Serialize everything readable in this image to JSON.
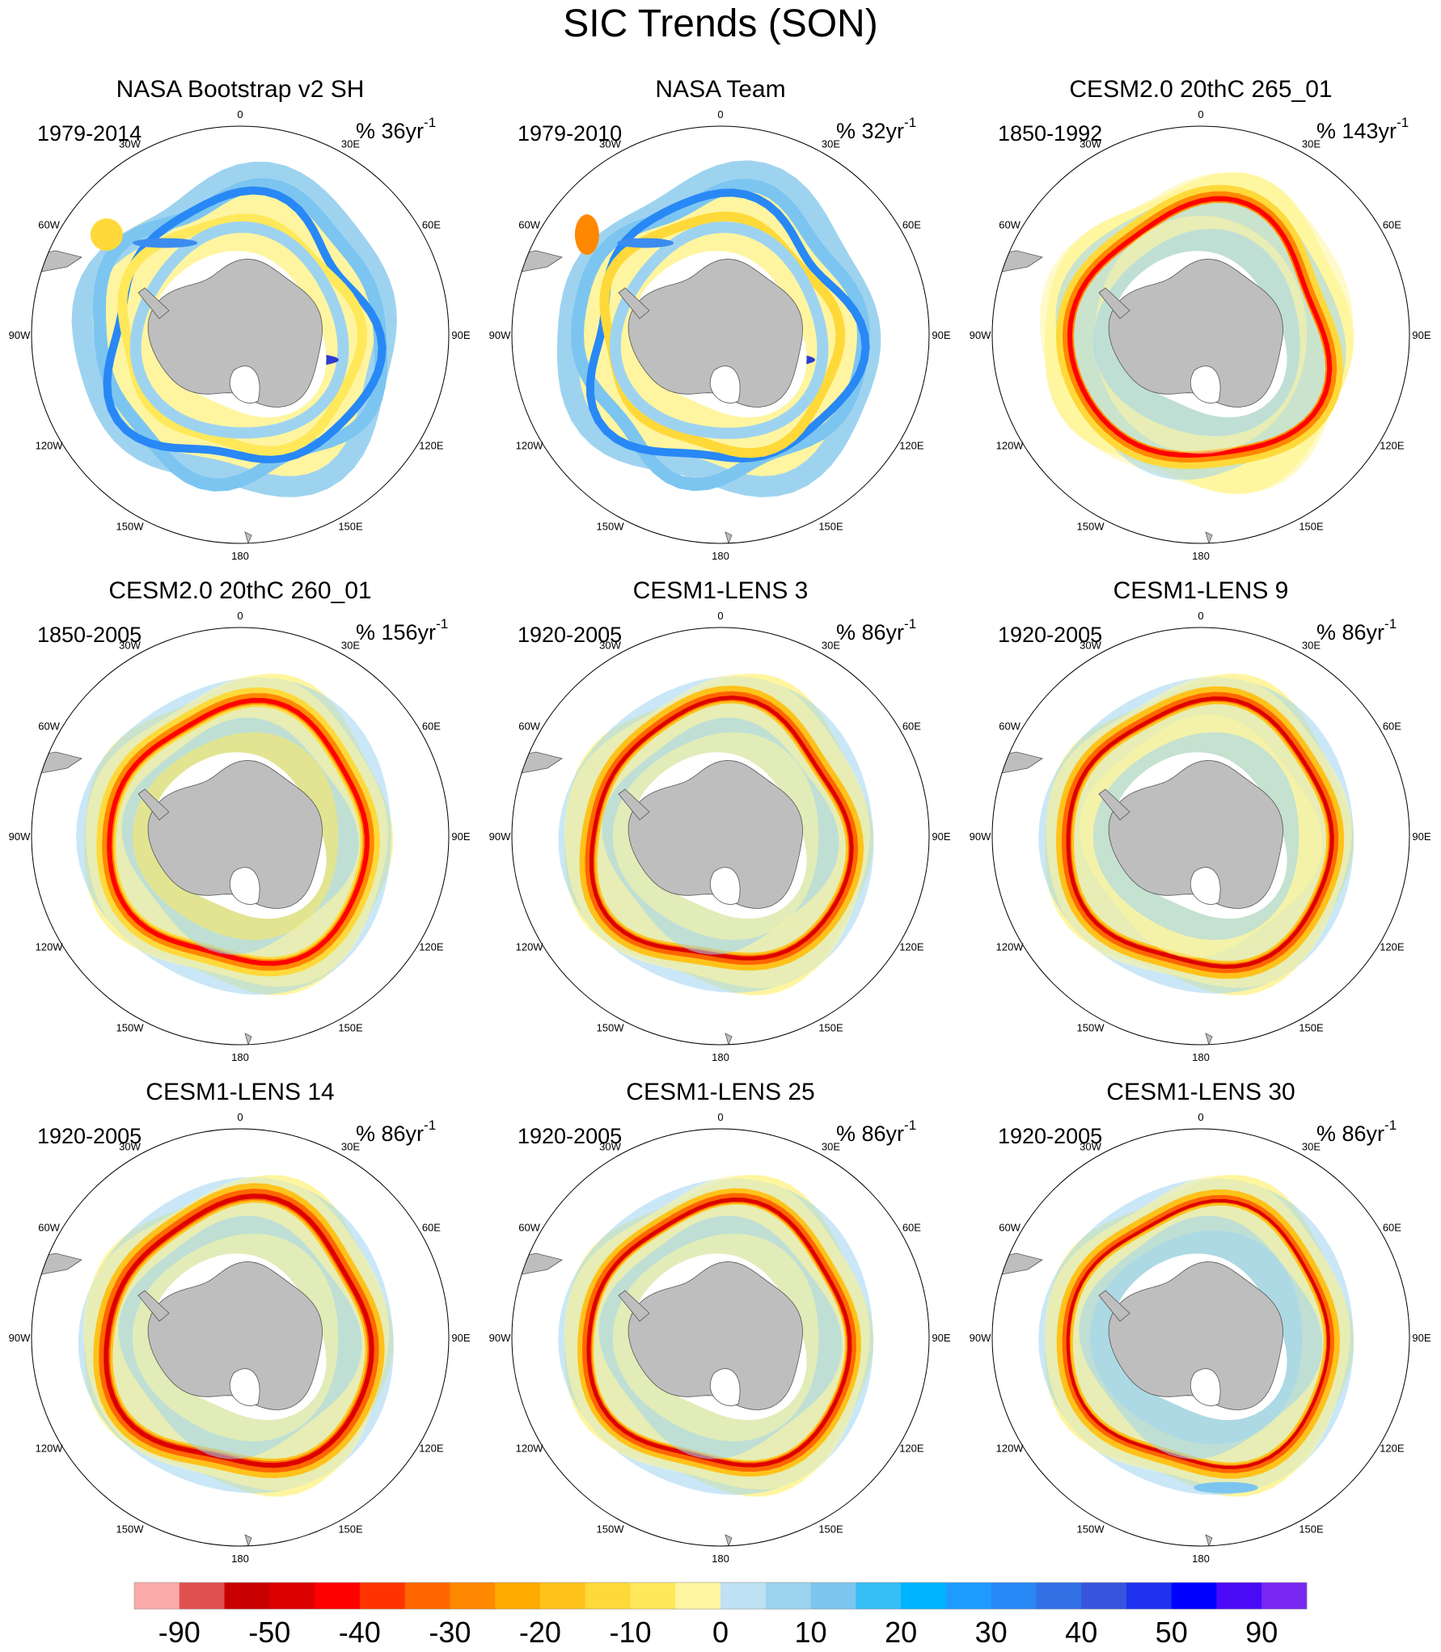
{
  "chart_data": {
    "type": "heatmap",
    "title": "SIC Trends (SON)",
    "projection": "south polar stereographic",
    "longitude_labels": [
      "0",
      "30E",
      "60E",
      "90E",
      "120E",
      "150E",
      "180",
      "150W",
      "120W",
      "90W",
      "60W",
      "30W"
    ],
    "colorbar": {
      "tick_labels": [
        "-90",
        "-50",
        "-40",
        "-30",
        "-20",
        "-10",
        "0",
        "10",
        "20",
        "30",
        "40",
        "50",
        "90"
      ],
      "colors": [
        "#FBAAAA",
        "#E05050",
        "#C80000",
        "#DC0000",
        "#FF0000",
        "#FF3300",
        "#FF6600",
        "#FF8800",
        "#FFAA00",
        "#FFC21A",
        "#FFD93A",
        "#FFE85A",
        "#FFF5A0",
        "#BEE1F3",
        "#9ED3F0",
        "#7CC5F0",
        "#35BEF5",
        "#00B4FF",
        "#1E9BFF",
        "#2888F5",
        "#3270E6",
        "#3755DC",
        "#1E32F0",
        "#0000FF",
        "#4B0AF5",
        "#7828F0"
      ]
    },
    "panels": [
      {
        "title": "NASA Bootstrap v2 SH",
        "period": "1979-2014",
        "units": "% 36yr",
        "exponent": "-1",
        "pattern": "obs1"
      },
      {
        "title": "NASA Team",
        "period": "1979-2010",
        "units": "% 32yr",
        "exponent": "-1",
        "pattern": "obs2"
      },
      {
        "title": "CESM2.0 20thC 265_01",
        "period": "1850-1992",
        "units": "% 143yr",
        "exponent": "-1",
        "pattern": "mod1"
      },
      {
        "title": "CESM2.0 20thC 260_01",
        "period": "1850-2005",
        "units": "% 156yr",
        "exponent": "-1",
        "pattern": "mod2"
      },
      {
        "title": "CESM1-LENS 3",
        "period": "1920-2005",
        "units": "% 86yr",
        "exponent": "-1",
        "pattern": "mod3"
      },
      {
        "title": "CESM1-LENS 9",
        "period": "1920-2005",
        "units": "% 86yr",
        "exponent": "-1",
        "pattern": "mod4"
      },
      {
        "title": "CESM1-LENS 14",
        "period": "1920-2005",
        "units": "% 86yr",
        "exponent": "-1",
        "pattern": "mod5"
      },
      {
        "title": "CESM1-LENS 25",
        "period": "1920-2005",
        "units": "% 86yr",
        "exponent": "-1",
        "pattern": "mod6"
      },
      {
        "title": "CESM1-LENS 30",
        "period": "1920-2005",
        "units": "% 86yr",
        "exponent": "-1",
        "pattern": "mod7"
      }
    ]
  }
}
